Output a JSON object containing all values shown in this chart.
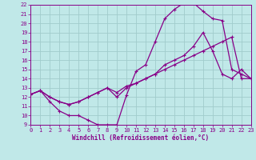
{
  "xlabel": "Windchill (Refroidissement éolien,°C)",
  "bg_color": "#c0e8e8",
  "grid_color": "#a0cccc",
  "line_color": "#880088",
  "xlim": [
    0,
    23
  ],
  "ylim": [
    9,
    22
  ],
  "xticks": [
    0,
    1,
    2,
    3,
    4,
    5,
    6,
    7,
    8,
    9,
    10,
    11,
    12,
    13,
    14,
    15,
    16,
    17,
    18,
    19,
    20,
    21,
    22,
    23
  ],
  "yticks": [
    9,
    10,
    11,
    12,
    13,
    14,
    15,
    16,
    17,
    18,
    19,
    20,
    21,
    22
  ],
  "curve1_x": [
    0,
    1,
    2,
    3,
    4,
    5,
    6,
    7,
    8,
    9,
    10,
    11,
    12,
    13,
    14,
    15,
    16,
    17,
    18,
    19,
    20,
    21,
    22,
    23
  ],
  "curve1_y": [
    12.3,
    12.7,
    11.5,
    10.5,
    10.0,
    10.0,
    9.5,
    9.0,
    9.0,
    9.0,
    12.2,
    14.8,
    15.5,
    18.0,
    20.5,
    21.5,
    22.2,
    22.2,
    21.3,
    20.5,
    20.3,
    15.0,
    14.5,
    14.0
  ],
  "curve2_x": [
    0,
    1,
    2,
    3,
    4,
    5,
    6,
    7,
    8,
    9,
    10,
    11,
    12,
    13,
    14,
    15,
    16,
    17,
    18,
    19,
    20,
    21,
    22,
    23
  ],
  "curve2_y": [
    12.3,
    12.7,
    12.0,
    11.5,
    11.2,
    11.5,
    12.0,
    12.5,
    13.0,
    12.0,
    13.0,
    13.5,
    14.0,
    14.5,
    15.5,
    16.0,
    16.5,
    17.5,
    19.0,
    17.0,
    14.5,
    14.0,
    15.0,
    14.0
  ],
  "curve3_x": [
    0,
    1,
    2,
    3,
    4,
    5,
    6,
    7,
    8,
    9,
    10,
    11,
    12,
    13,
    14,
    15,
    16,
    17,
    18,
    19,
    20,
    21,
    22,
    23
  ],
  "curve3_y": [
    12.3,
    12.7,
    12.0,
    11.5,
    11.2,
    11.5,
    12.0,
    12.5,
    13.0,
    12.5,
    13.2,
    13.5,
    14.0,
    14.5,
    15.0,
    15.5,
    16.0,
    16.5,
    17.0,
    17.5,
    18.0,
    18.5,
    14.0,
    14.0
  ]
}
